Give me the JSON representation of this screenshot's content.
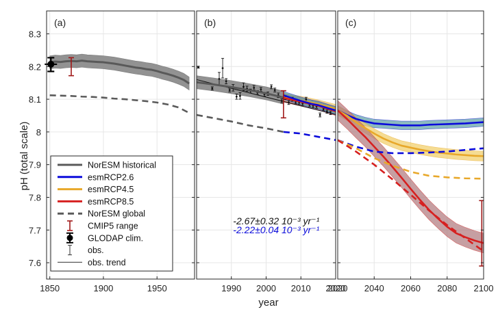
{
  "chart_data": {
    "type": "line",
    "ylabel": "pH (total scale)",
    "xlabel": "year",
    "ylim": [
      7.55,
      8.37
    ],
    "yticks": [
      7.6,
      7.7,
      7.8,
      7.9,
      8.0,
      8.1,
      8.2,
      8.3
    ],
    "ytick_labels": [
      "7.6",
      "7.7",
      "7.8",
      "7.9",
      "8",
      "8.1",
      "8.2",
      "8.3"
    ],
    "grid": true,
    "colors": {
      "historical": "#595959",
      "historical_band": "#8c8c8c",
      "rcp26": "#0a0adb",
      "rcp26_band": "#5e9fa6",
      "rcp45": "#e8a82a",
      "rcp45_band": "#f1cf6a",
      "rcp85": "#d62020",
      "rcp85_band": "#b07a7e",
      "global": "#5a5a5a",
      "cmip5": "#a01818",
      "obs": "#111111"
    },
    "panels": [
      {
        "label": "(a)",
        "xlim": [
          1847,
          1985
        ],
        "xticks": [
          1850,
          1900,
          1950
        ],
        "xtick_labels": [
          "1850",
          "1900",
          "1950"
        ],
        "series": [
          {
            "key": "historical",
            "x": [
              1850,
              1855,
              1860,
              1865,
              1870,
              1875,
              1880,
              1885,
              1890,
              1895,
              1900,
              1905,
              1910,
              1915,
              1920,
              1925,
              1930,
              1935,
              1940,
              1945,
              1950,
              1955,
              1960,
              1965,
              1970,
              1975,
              1980
            ],
            "values": [
              8.213,
              8.215,
              8.214,
              8.216,
              8.217,
              8.216,
              8.218,
              8.216,
              8.215,
              8.214,
              8.213,
              8.211,
              8.209,
              8.206,
              8.203,
              8.2,
              8.197,
              8.195,
              8.192,
              8.19,
              8.186,
              8.181,
              8.177,
              8.172,
              8.166,
              8.159,
              8.148
            ],
            "spread": 0.02
          },
          {
            "key": "global",
            "x": [
              1850,
              1860,
              1870,
              1880,
              1890,
              1900,
              1910,
              1920,
              1930,
              1940,
              1950,
              1960,
              1970,
              1980
            ],
            "values": [
              8.112,
              8.111,
              8.11,
              8.108,
              8.107,
              8.105,
              8.102,
              8.1,
              8.097,
              8.094,
              8.09,
              8.084,
              8.075,
              8.058
            ]
          }
        ],
        "cmip5": [
          {
            "x": 1870,
            "center": 8.205,
            "low": 8.172,
            "high": 8.227
          }
        ],
        "glodap": {
          "x": 1851,
          "y": 8.207,
          "low": 8.185,
          "high": 8.227
        }
      },
      {
        "label": "(b)",
        "xlim": [
          1980,
          2020
        ],
        "xticks": [
          1990,
          2000,
          2010,
          2020
        ],
        "xtick_labels": [
          "1990",
          "2000",
          "2010",
          "2020"
        ],
        "series": [
          {
            "key": "historical",
            "x": [
              1980,
              1985,
              1990,
              1995,
              2000,
              2005
            ],
            "values": [
              8.152,
              8.145,
              8.137,
              8.128,
              8.118,
              8.105
            ],
            "spread": 0.02
          },
          {
            "key": "rcp45",
            "x": [
              2005,
              2010,
              2015,
              2020
            ],
            "values": [
              8.105,
              8.096,
              8.085,
              8.071
            ],
            "spread": 0.013
          },
          {
            "key": "rcp85",
            "x": [
              2005,
              2010,
              2015,
              2020
            ],
            "values": [
              8.104,
              8.092,
              8.08,
              8.063
            ],
            "spread": 0.013
          },
          {
            "key": "rcp26",
            "x": [
              2005,
              2007,
              2010,
              2013,
              2015,
              2018,
              2020
            ],
            "values": [
              8.112,
              8.105,
              8.095,
              8.086,
              8.082,
              8.072,
              8.066
            ],
            "spread": 0.012
          },
          {
            "key": "global",
            "x": [
              1980,
              1985,
              1990,
              1995,
              2000,
              2005
            ],
            "values": [
              8.052,
              8.042,
              8.032,
              8.02,
              8.011,
              8.0
            ]
          },
          {
            "key": "rcp26_global",
            "x": [
              2005,
              2010,
              2015,
              2020
            ],
            "values": [
              8.0,
              7.995,
              7.985,
              7.975
            ]
          }
        ],
        "obs_trend": {
          "x": [
            1980,
            2020
          ],
          "values": [
            8.16,
            8.053
          ]
        },
        "obs": [
          {
            "x": 1980.5,
            "y": 8.198,
            "err": 0.003
          },
          {
            "x": 1984.5,
            "y": 8.133,
            "err": 0.005
          },
          {
            "x": 1986.5,
            "y": 8.162,
            "err": 0.02
          },
          {
            "x": 1987.5,
            "y": 8.195,
            "err": 0.03
          },
          {
            "x": 1988.5,
            "y": 8.155,
            "err": 0.008
          },
          {
            "x": 1989.5,
            "y": 8.128,
            "err": 0.006
          },
          {
            "x": 1990.5,
            "y": 8.135,
            "err": 0.01
          },
          {
            "x": 1991.5,
            "y": 8.108,
            "err": 0.008
          },
          {
            "x": 1992.5,
            "y": 8.11,
            "err": 0.01
          },
          {
            "x": 1993.5,
            "y": 8.138,
            "err": 0.012
          },
          {
            "x": 1994.5,
            "y": 8.132,
            "err": 0.008
          },
          {
            "x": 1995.5,
            "y": 8.125,
            "err": 0.006
          },
          {
            "x": 1996.5,
            "y": 8.135,
            "err": 0.007
          },
          {
            "x": 1997.5,
            "y": 8.12,
            "err": 0.006
          },
          {
            "x": 1998.5,
            "y": 8.13,
            "err": 0.006
          },
          {
            "x": 1999.5,
            "y": 8.115,
            "err": 0.006
          },
          {
            "x": 2000.5,
            "y": 8.117,
            "err": 0.005
          },
          {
            "x": 2001.5,
            "y": 8.138,
            "err": 0.006
          },
          {
            "x": 2002.5,
            "y": 8.128,
            "err": 0.006
          },
          {
            "x": 2003.5,
            "y": 8.112,
            "err": 0.007
          },
          {
            "x": 2004.5,
            "y": 8.095,
            "err": 0.006
          },
          {
            "x": 2005.5,
            "y": 8.105,
            "err": 0.006
          },
          {
            "x": 2006.5,
            "y": 8.09,
            "err": 0.006
          },
          {
            "x": 2007.5,
            "y": 8.1,
            "err": 0.006
          },
          {
            "x": 2008.5,
            "y": 8.092,
            "err": 0.006
          },
          {
            "x": 2009.5,
            "y": 8.09,
            "err": 0.006
          },
          {
            "x": 2010.5,
            "y": 8.087,
            "err": 0.006
          },
          {
            "x": 2011.5,
            "y": 8.1,
            "err": 0.006
          },
          {
            "x": 2012.5,
            "y": 8.083,
            "err": 0.006
          },
          {
            "x": 2013.5,
            "y": 8.08,
            "err": 0.006
          },
          {
            "x": 2014.5,
            "y": 8.078,
            "err": 0.006
          },
          {
            "x": 2015.5,
            "y": 8.052,
            "err": 0.006
          },
          {
            "x": 2016.5,
            "y": 8.07,
            "err": 0.005
          },
          {
            "x": 2017.5,
            "y": 8.062,
            "err": 0.005
          },
          {
            "x": 2018.5,
            "y": 8.058,
            "err": 0.005
          }
        ],
        "cmip5": [
          {
            "x": 2005,
            "center": 8.1,
            "low": 8.043,
            "high": 8.126
          }
        ],
        "annotations": [
          {
            "text": "-2.67±0.32 10⁻³ yr⁻¹",
            "color": "#111111",
            "x": 1990.5,
            "y": 7.717
          },
          {
            "text": "-2.22±0.04 10⁻³ yr⁻¹",
            "color": "#0a0adb",
            "x": 1990.5,
            "y": 7.69
          }
        ]
      },
      {
        "label": "(c)",
        "xlim": [
          2020,
          2100
        ],
        "xticks": [
          2020,
          2040,
          2060,
          2080,
          2100
        ],
        "xtick_labels": [
          "2020",
          "2040",
          "2060",
          "2080",
          "2100"
        ],
        "series": [
          {
            "key": "rcp26",
            "x": [
              2020,
              2025,
              2030,
              2035,
              2040,
              2045,
              2050,
              2055,
              2060,
              2065,
              2070,
              2075,
              2080,
              2085,
              2090,
              2095,
              2100
            ],
            "values": [
              8.066,
              8.052,
              8.04,
              8.032,
              8.026,
              8.024,
              8.022,
              8.02,
              8.02,
              8.02,
              8.022,
              8.023,
              8.024,
              8.025,
              8.026,
              8.028,
              8.03
            ],
            "spread": 0.013
          },
          {
            "key": "rcp45",
            "x": [
              2020,
              2025,
              2030,
              2035,
              2040,
              2045,
              2050,
              2055,
              2060,
              2065,
              2070,
              2075,
              2080,
              2085,
              2090,
              2095,
              2100
            ],
            "values": [
              8.066,
              8.05,
              8.03,
              8.012,
              7.995,
              7.98,
              7.968,
              7.958,
              7.952,
              7.946,
              7.941,
              7.937,
              7.934,
              7.931,
              7.929,
              7.927,
              7.926
            ],
            "spread": 0.015
          },
          {
            "key": "rcp85",
            "x": [
              2020,
              2025,
              2030,
              2035,
              2040,
              2045,
              2050,
              2055,
              2060,
              2065,
              2070,
              2075,
              2080,
              2085,
              2090,
              2095,
              2100
            ],
            "values": [
              8.066,
              8.04,
              8.012,
              7.985,
              7.955,
              7.925,
              7.893,
              7.86,
              7.826,
              7.793,
              7.762,
              7.735,
              7.71,
              7.69,
              7.678,
              7.668,
              7.66
            ],
            "spread": 0.03
          },
          {
            "key": "rcp26_global",
            "x": [
              2020,
              2030,
              2040,
              2050,
              2060,
              2070,
              2080,
              2090,
              2100
            ],
            "values": [
              7.975,
              7.955,
              7.94,
              7.935,
              7.935,
              7.937,
              7.94,
              7.945,
              7.95
            ]
          },
          {
            "key": "rcp45_global",
            "x": [
              2020,
              2030,
              2040,
              2050,
              2060,
              2070,
              2080,
              2090,
              2100
            ],
            "values": [
              7.975,
              7.95,
              7.92,
              7.897,
              7.878,
              7.866,
              7.861,
              7.858,
              7.857
            ]
          },
          {
            "key": "rcp85_global",
            "x": [
              2020,
              2030,
              2040,
              2050,
              2060,
              2070,
              2080,
              2090,
              2100
            ],
            "values": [
              7.975,
              7.94,
              7.9,
              7.855,
              7.808,
              7.76,
              7.715,
              7.675,
              7.635
            ]
          }
        ],
        "cmip5": [
          {
            "x": 2099,
            "center": 7.69,
            "low": 7.59,
            "high": 7.79
          }
        ]
      }
    ],
    "legend": {
      "placement": "inside-left",
      "entries": [
        {
          "label": "NorESM historical",
          "key": "historical",
          "style": "line"
        },
        {
          "label": "esmRCP2.6",
          "key": "rcp26",
          "style": "line"
        },
        {
          "label": "esmRCP4.5",
          "key": "rcp45",
          "style": "line"
        },
        {
          "label": "esmRCP8.5",
          "key": "rcp85",
          "style": "line"
        },
        {
          "label": "NorESM global",
          "key": "global",
          "style": "dashed"
        },
        {
          "label": "CMIP5 range",
          "key": "cmip5",
          "style": "errorbar"
        },
        {
          "label": "GLODAP clim.",
          "key": "glodap",
          "style": "marker"
        },
        {
          "label": "obs.",
          "key": "obs",
          "style": "errorbar-thin"
        },
        {
          "label": "obs. trend",
          "key": "obs",
          "style": "thin-line"
        }
      ]
    }
  }
}
